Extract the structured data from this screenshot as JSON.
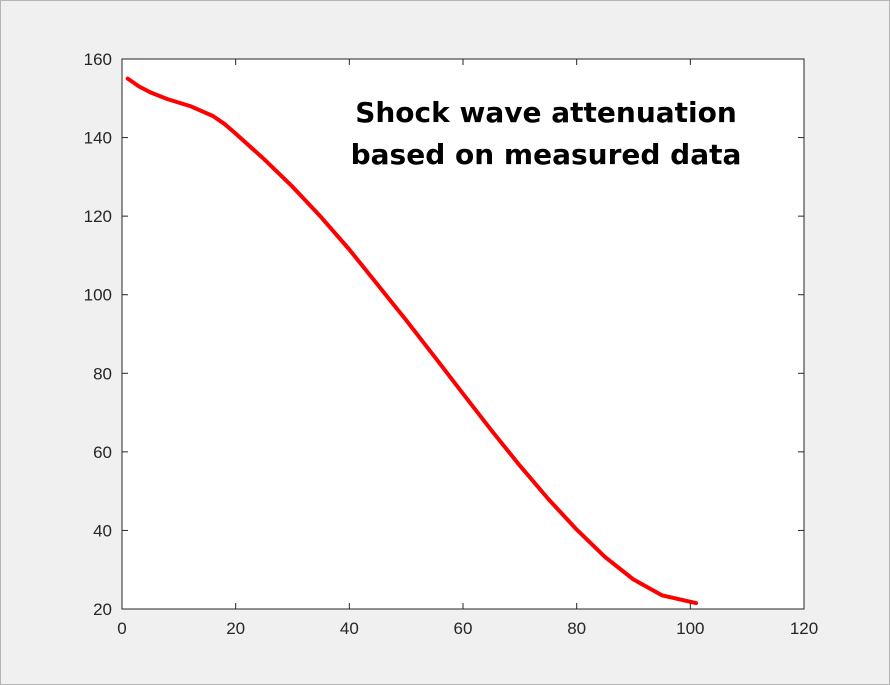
{
  "chart_data": {
    "type": "line",
    "title_lines": [
      "Shock wave attenuation",
      "based on measured data"
    ],
    "xlabel": "",
    "ylabel": "",
    "xlim": [
      0,
      120
    ],
    "ylim": [
      20,
      160
    ],
    "xticks": [
      0,
      20,
      40,
      60,
      80,
      100,
      120
    ],
    "yticks": [
      20,
      40,
      60,
      80,
      100,
      120,
      140,
      160
    ],
    "grid": false,
    "series": [
      {
        "color": "#ff0000",
        "x": [
          1,
          3,
          5,
          8,
          12,
          16,
          18,
          20,
          25,
          30,
          35,
          40,
          45,
          50,
          55,
          60,
          65,
          70,
          75,
          80,
          85,
          90,
          95,
          101
        ],
        "y": [
          155,
          153,
          151.5,
          149.8,
          148,
          145.5,
          143.5,
          141,
          134.5,
          127.5,
          119.8,
          111.5,
          102.5,
          93.5,
          84.2,
          74.8,
          65.5,
          56.5,
          48,
          40.2,
          33.2,
          27.5,
          23.5,
          21.5
        ]
      }
    ]
  }
}
